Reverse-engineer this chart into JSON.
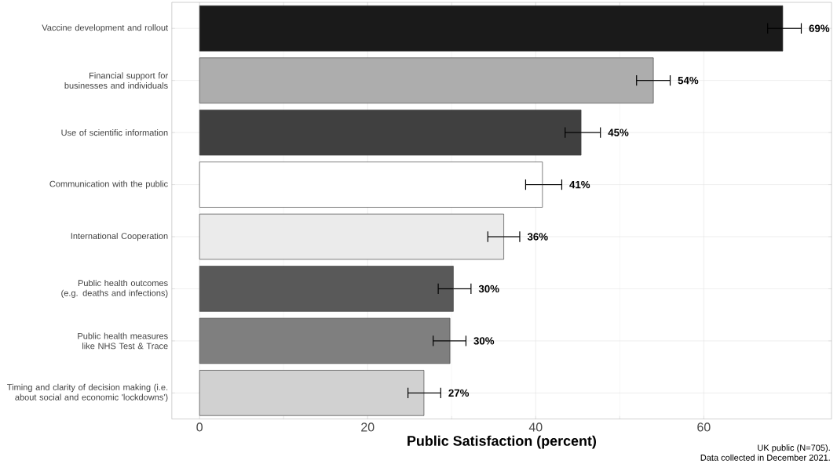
{
  "chart_data": {
    "type": "bar",
    "orientation": "horizontal",
    "xlabel": "Public Satisfaction (percent)",
    "categories": [
      "Vaccine development and rollout",
      "Financial support for businesses and individuals",
      "Use of scientific information",
      "Communication with the public",
      "International Cooperation",
      "Public health outcomes (e.g. deaths and infections)",
      "Public health measures like NHS Test & Trace",
      "Timing and clarity of decision making (i.e. about social and economic 'lockdowns')"
    ],
    "values": [
      69.4,
      54.0,
      45.4,
      40.8,
      36.2,
      30.2,
      29.8,
      26.7
    ],
    "colors": [
      "#1a1a1a",
      "#adadad",
      "#404040",
      "#ffffff",
      "#ebebeb",
      "#595959",
      "#7f7f7f",
      "#d1d1d1"
    ],
    "errors": [
      [
        67.6,
        71.6
      ],
      [
        52.0,
        56.0
      ],
      [
        43.5,
        47.7
      ],
      [
        38.8,
        43.1
      ],
      [
        34.3,
        38.1
      ],
      [
        28.4,
        32.3
      ],
      [
        27.8,
        31.7
      ],
      [
        24.8,
        28.7
      ]
    ],
    "value_labels": [
      "69%",
      "54%",
      "45%",
      "41%",
      "36%",
      "30%",
      "30%",
      "27%"
    ],
    "xlim": [
      -3.3,
      75.2
    ],
    "xticks": [
      0,
      20,
      40,
      60
    ],
    "grid": true,
    "annotations": [
      "UK public (N=705).",
      "Data collected in December 2021."
    ]
  }
}
